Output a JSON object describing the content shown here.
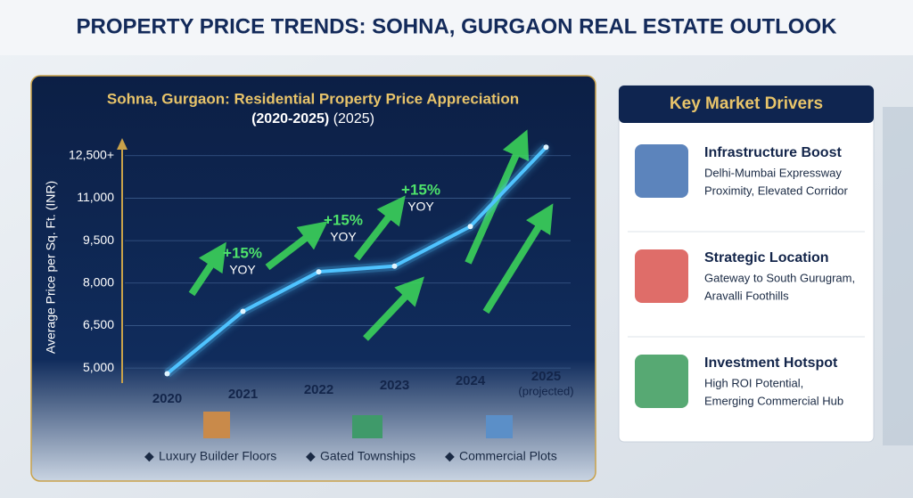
{
  "page_title": "PROPERTY PRICE TRENDS: SOHNA, GURGAON REAL ESTATE OUTLOOK",
  "chart_data": {
    "type": "line",
    "title": "Sohna, Gurgaon: Residential Property Price Appreciation",
    "subtitle": "(2020-2025)",
    "subtitle_note": "(2025)",
    "y_label": "Average Price per Sq. Ft. (INR)",
    "categories": [
      "2020",
      "2021",
      "2022",
      "2023",
      "2024",
      "2025"
    ],
    "category_note": "(projected)",
    "series": [
      {
        "name": "Average Price",
        "color": "#4fc3ff",
        "values": [
          4800,
          7000,
          8400,
          8600,
          10000,
          12800
        ]
      }
    ],
    "ylim": [
      4500,
      13500
    ],
    "yticks": [
      {
        "value": 5000,
        "label": "5,000"
      },
      {
        "value": 6500,
        "label": "6,500"
      },
      {
        "value": 8000,
        "label": "8,000"
      },
      {
        "value": 9500,
        "label": "9,500"
      },
      {
        "value": 11000,
        "label": "11,000"
      },
      {
        "value": 12500,
        "label": "12,500+"
      }
    ],
    "grid": true,
    "annotations": [
      {
        "text": "+15%",
        "sub": "YOY"
      },
      {
        "text": "+15%",
        "sub": "YOY"
      },
      {
        "text": "+15%",
        "sub": "YOY"
      }
    ],
    "property_types": [
      "Luxury Builder Floors",
      "Gated Townships",
      "Commercial Plots"
    ]
  },
  "drivers": {
    "title": "Key Market Drivers",
    "items": [
      {
        "title": "Infrastructure Boost",
        "lines": [
          "Delhi-Mumbai Expressway",
          "Proximity, Elevated Corridor"
        ]
      },
      {
        "title": "Strategic Location",
        "lines": [
          "Gateway to South Gurugram,",
          "Aravalli Foothills"
        ]
      },
      {
        "title": "Investment Hotspot",
        "lines": [
          "High ROI Potential,",
          "Emerging Commercial Hub"
        ]
      }
    ]
  }
}
